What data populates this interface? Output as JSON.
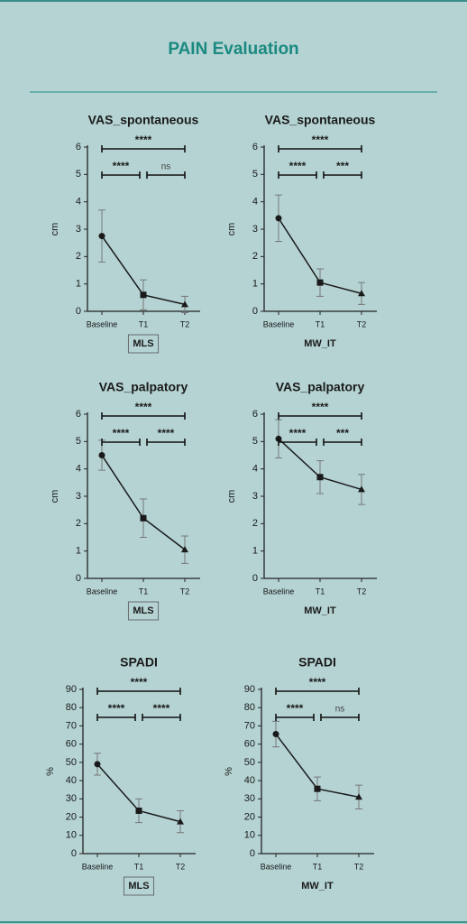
{
  "header": {
    "title": "PAIN Evaluation"
  },
  "chart_data": [
    {
      "type": "line",
      "title": "VAS_spontaneous",
      "ylabel": "cm",
      "xlabel": "MLS",
      "xlabel_boxed": true,
      "categories": [
        "Baseline",
        "T1",
        "T2"
      ],
      "values": [
        2.75,
        0.6,
        0.25
      ],
      "errors": [
        0.95,
        0.55,
        0.3
      ],
      "markers": [
        "circle",
        "square",
        "triangle"
      ],
      "color": "#1a1a1a",
      "ylim": [
        0,
        6
      ],
      "yticks": [
        0,
        1,
        2,
        3,
        4,
        5,
        6
      ],
      "brackets": [
        {
          "from": 0,
          "to": 2,
          "label": "****"
        },
        {
          "from": 0,
          "to": 1,
          "label": "****"
        },
        {
          "from": 1,
          "to": 2,
          "label": "ns"
        }
      ]
    },
    {
      "type": "line",
      "title": "VAS_spontaneous",
      "ylabel": "cm",
      "xlabel": "MW_IT",
      "xlabel_boxed": false,
      "categories": [
        "Baseline",
        "T1",
        "T2"
      ],
      "values": [
        3.4,
        1.05,
        0.65
      ],
      "errors": [
        0.85,
        0.5,
        0.4
      ],
      "markers": [
        "circle",
        "square",
        "triangle"
      ],
      "color": "#1a1a1a",
      "ylim": [
        0,
        6
      ],
      "yticks": [
        0,
        1,
        2,
        3,
        4,
        5,
        6
      ],
      "brackets": [
        {
          "from": 0,
          "to": 2,
          "label": "****"
        },
        {
          "from": 0,
          "to": 1,
          "label": "****"
        },
        {
          "from": 1,
          "to": 2,
          "label": "***"
        }
      ]
    },
    {
      "type": "line",
      "title": "VAS_palpatory",
      "ylabel": "cm",
      "xlabel": "MLS",
      "xlabel_boxed": true,
      "categories": [
        "Baseline",
        "T1",
        "T2"
      ],
      "values": [
        4.5,
        2.2,
        1.05
      ],
      "errors": [
        0.55,
        0.7,
        0.5
      ],
      "markers": [
        "circle",
        "square",
        "triangle"
      ],
      "color": "#1a1a1a",
      "ylim": [
        0,
        6
      ],
      "yticks": [
        0,
        1,
        2,
        3,
        4,
        5,
        6
      ],
      "brackets": [
        {
          "from": 0,
          "to": 2,
          "label": "****"
        },
        {
          "from": 0,
          "to": 1,
          "label": "****"
        },
        {
          "from": 1,
          "to": 2,
          "label": "****"
        }
      ]
    },
    {
      "type": "line",
      "title": "VAS_palpatory",
      "ylabel": "cm",
      "xlabel": "MW_IT",
      "xlabel_boxed": false,
      "categories": [
        "Baseline",
        "T1",
        "T2"
      ],
      "values": [
        5.1,
        3.7,
        3.25
      ],
      "errors": [
        0.7,
        0.6,
        0.55
      ],
      "markers": [
        "circle",
        "square",
        "triangle"
      ],
      "color": "#1a1a1a",
      "ylim": [
        0,
        6
      ],
      "yticks": [
        0,
        1,
        2,
        3,
        4,
        5,
        6
      ],
      "brackets": [
        {
          "from": 0,
          "to": 2,
          "label": "****"
        },
        {
          "from": 0,
          "to": 1,
          "label": "****"
        },
        {
          "from": 1,
          "to": 2,
          "label": "***"
        }
      ]
    },
    {
      "type": "line",
      "title": "SPADI",
      "ylabel": "%",
      "xlabel": "MLS",
      "xlabel_boxed": true,
      "categories": [
        "Baseline",
        "T1",
        "T2"
      ],
      "values": [
        49,
        23.5,
        17.5
      ],
      "errors": [
        6,
        6.5,
        6
      ],
      "markers": [
        "circle",
        "square",
        "triangle"
      ],
      "color": "#1a1a1a",
      "ylim": [
        0,
        90
      ],
      "yticks": [
        0,
        10,
        20,
        30,
        40,
        50,
        60,
        70,
        80,
        90
      ],
      "brackets": [
        {
          "from": 0,
          "to": 2,
          "label": "****"
        },
        {
          "from": 0,
          "to": 1,
          "label": "****"
        },
        {
          "from": 1,
          "to": 2,
          "label": "****"
        }
      ]
    },
    {
      "type": "line",
      "title": "SPADI",
      "ylabel": "%",
      "xlabel": "MW_IT",
      "xlabel_boxed": false,
      "categories": [
        "Baseline",
        "T1",
        "T2"
      ],
      "values": [
        65.5,
        35.5,
        31
      ],
      "errors": [
        7,
        6.5,
        6.5
      ],
      "markers": [
        "circle",
        "square",
        "triangle"
      ],
      "color": "#1a1a1a",
      "ylim": [
        0,
        90
      ],
      "yticks": [
        0,
        10,
        20,
        30,
        40,
        50,
        60,
        70,
        80,
        90
      ],
      "brackets": [
        {
          "from": 0,
          "to": 2,
          "label": "****"
        },
        {
          "from": 0,
          "to": 1,
          "label": "****"
        },
        {
          "from": 1,
          "to": 2,
          "label": "ns"
        }
      ]
    }
  ]
}
